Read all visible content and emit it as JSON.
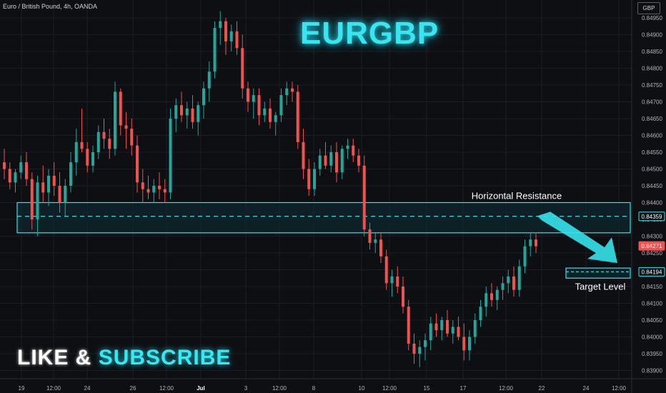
{
  "header": {
    "symbol_line": "Euro / British Pound, 4h, OANDA",
    "title": "EURGBP"
  },
  "price_axis": {
    "currency": "GBP",
    "ticks": [
      "0.84950",
      "0.84900",
      "0.84850",
      "0.84800",
      "0.84750",
      "0.84700",
      "0.84650",
      "0.84600",
      "0.84550",
      "0.84500",
      "0.84450",
      "0.84400",
      "0.84350",
      "0.84300",
      "0.84250",
      "0.84200",
      "0.84150",
      "0.84100",
      "0.84050",
      "0.84000",
      "0.83950",
      "0.83900"
    ],
    "tick_values": [
      0.8495,
      0.849,
      0.8485,
      0.848,
      0.8475,
      0.847,
      0.8465,
      0.846,
      0.8455,
      0.845,
      0.8445,
      0.844,
      0.8435,
      0.843,
      0.8425,
      0.842,
      0.8415,
      0.841,
      0.8405,
      0.84,
      0.8395,
      0.839
    ]
  },
  "time_axis": {
    "labels": [
      "19",
      "12:00",
      "24",
      "26",
      "12:00",
      "Jul",
      "3",
      "12:00",
      "8",
      "10",
      "12:00",
      "15",
      "17",
      "12:00",
      "22",
      "24",
      "12:00"
    ]
  },
  "annotations": {
    "resistance_label": "Horizontal Resistance",
    "target_label": "Target Level",
    "resistance_price": "0.84359",
    "target_price": "0.84194",
    "last_price": "0.84271"
  },
  "cta": {
    "part1": "LIKE &",
    "part2": "SUBSCRIBE"
  },
  "colors": {
    "background": "#0e0f13",
    "bull": "#26a69a",
    "bear": "#ef5350",
    "accent": "#35e3ec",
    "zone_fill": "#0d2b34",
    "grid": "#1b1d23"
  },
  "chart_data": {
    "type": "candlestick",
    "title": "EURGBP",
    "series_label": "Euro / British Pound, 4h, OANDA",
    "ylim": [
      0.8389,
      0.8497
    ],
    "resistance_zone": [
      0.8431,
      0.844
    ],
    "resistance_level": 0.84359,
    "target_zone": [
      0.84175,
      0.84205
    ],
    "target_level": 0.84194,
    "last_price": 0.84271,
    "candles": [
      [
        0.8452,
        0.8456,
        0.8447,
        0.845
      ],
      [
        0.845,
        0.8452,
        0.8444,
        0.8446
      ],
      [
        0.8446,
        0.845,
        0.8443,
        0.8449
      ],
      [
        0.8449,
        0.8454,
        0.8447,
        0.8452
      ],
      [
        0.8452,
        0.8455,
        0.8445,
        0.8447
      ],
      [
        0.8447,
        0.8449,
        0.8432,
        0.8435
      ],
      [
        0.8435,
        0.8448,
        0.843,
        0.8446
      ],
      [
        0.8446,
        0.8451,
        0.844,
        0.8443
      ],
      [
        0.8443,
        0.845,
        0.8439,
        0.8448
      ],
      [
        0.8448,
        0.8452,
        0.8442,
        0.8445
      ],
      [
        0.8445,
        0.8449,
        0.8437,
        0.844
      ],
      [
        0.844,
        0.8447,
        0.8436,
        0.8445
      ],
      [
        0.8445,
        0.8455,
        0.8443,
        0.8452
      ],
      [
        0.8452,
        0.8462,
        0.8448,
        0.8458
      ],
      [
        0.8458,
        0.8468,
        0.8455,
        0.8456
      ],
      [
        0.8456,
        0.8458,
        0.8449,
        0.8451
      ],
      [
        0.8451,
        0.8457,
        0.8449,
        0.8455
      ],
      [
        0.8455,
        0.8463,
        0.8453,
        0.8461
      ],
      [
        0.8461,
        0.8465,
        0.8456,
        0.8459
      ],
      [
        0.8459,
        0.8462,
        0.8453,
        0.8456
      ],
      [
        0.8456,
        0.8476,
        0.8454,
        0.8473
      ],
      [
        0.8473,
        0.8474,
        0.846,
        0.8463
      ],
      [
        0.8463,
        0.8467,
        0.8456,
        0.8462
      ],
      [
        0.8462,
        0.8465,
        0.8454,
        0.8457
      ],
      [
        0.8457,
        0.846,
        0.8443,
        0.8446
      ],
      [
        0.8446,
        0.845,
        0.844,
        0.8444
      ],
      [
        0.8444,
        0.8448,
        0.8441,
        0.8443
      ],
      [
        0.8443,
        0.8447,
        0.844,
        0.8445
      ],
      [
        0.8445,
        0.8449,
        0.8441,
        0.8444
      ],
      [
        0.8444,
        0.8447,
        0.844,
        0.8443
      ],
      [
        0.8443,
        0.8468,
        0.8441,
        0.8465
      ],
      [
        0.8465,
        0.8471,
        0.8461,
        0.8469
      ],
      [
        0.8469,
        0.8473,
        0.8464,
        0.8466
      ],
      [
        0.8466,
        0.847,
        0.8462,
        0.8468
      ],
      [
        0.8468,
        0.8472,
        0.8462,
        0.8464
      ],
      [
        0.8464,
        0.847,
        0.846,
        0.8469
      ],
      [
        0.8469,
        0.8476,
        0.8465,
        0.8474
      ],
      [
        0.8474,
        0.8482,
        0.847,
        0.8479
      ],
      [
        0.8479,
        0.8494,
        0.8477,
        0.8492
      ],
      [
        0.8492,
        0.8497,
        0.8487,
        0.8494
      ],
      [
        0.8494,
        0.8495,
        0.8484,
        0.8488
      ],
      [
        0.8488,
        0.8493,
        0.8485,
        0.8491
      ],
      [
        0.8491,
        0.8494,
        0.8484,
        0.8486
      ],
      [
        0.8486,
        0.849,
        0.8471,
        0.8474
      ],
      [
        0.8474,
        0.8476,
        0.8467,
        0.847
      ],
      [
        0.847,
        0.8474,
        0.8465,
        0.8472
      ],
      [
        0.8472,
        0.8474,
        0.8463,
        0.8466
      ],
      [
        0.8466,
        0.847,
        0.8464,
        0.8468
      ],
      [
        0.8468,
        0.8471,
        0.8462,
        0.8464
      ],
      [
        0.8464,
        0.8467,
        0.846,
        0.8466
      ],
      [
        0.8466,
        0.8474,
        0.8464,
        0.8472
      ],
      [
        0.8472,
        0.8476,
        0.8469,
        0.8474
      ],
      [
        0.8474,
        0.8476,
        0.847,
        0.8473
      ],
      [
        0.8473,
        0.8475,
        0.8456,
        0.8458
      ],
      [
        0.8458,
        0.8462,
        0.8447,
        0.845
      ],
      [
        0.845,
        0.8453,
        0.8442,
        0.8444
      ],
      [
        0.8444,
        0.8452,
        0.8442,
        0.845
      ],
      [
        0.845,
        0.8456,
        0.8448,
        0.8454
      ],
      [
        0.8454,
        0.8458,
        0.845,
        0.8451
      ],
      [
        0.8451,
        0.8457,
        0.8449,
        0.8455
      ],
      [
        0.8455,
        0.8458,
        0.8446,
        0.8449
      ],
      [
        0.8449,
        0.8457,
        0.8447,
        0.8456
      ],
      [
        0.8456,
        0.8459,
        0.8453,
        0.8457
      ],
      [
        0.8457,
        0.8459,
        0.8452,
        0.8454
      ],
      [
        0.8454,
        0.8456,
        0.8449,
        0.8451
      ],
      [
        0.8451,
        0.8454,
        0.843,
        0.8432
      ],
      [
        0.8432,
        0.8434,
        0.8426,
        0.8428
      ],
      [
        0.8428,
        0.8431,
        0.8425,
        0.8429
      ],
      [
        0.8429,
        0.8431,
        0.8422,
        0.8424
      ],
      [
        0.8424,
        0.8426,
        0.8414,
        0.8416
      ],
      [
        0.8416,
        0.842,
        0.8412,
        0.8418
      ],
      [
        0.8418,
        0.8421,
        0.8413,
        0.8415
      ],
      [
        0.8415,
        0.8418,
        0.8407,
        0.8409
      ],
      [
        0.8409,
        0.8411,
        0.8396,
        0.8398
      ],
      [
        0.8398,
        0.8401,
        0.8392,
        0.8395
      ],
      [
        0.8395,
        0.8399,
        0.8391,
        0.8397
      ],
      [
        0.8397,
        0.8401,
        0.8393,
        0.8399
      ],
      [
        0.8399,
        0.8406,
        0.8396,
        0.8404
      ],
      [
        0.8404,
        0.8407,
        0.84,
        0.8402
      ],
      [
        0.8402,
        0.8406,
        0.8399,
        0.8405
      ],
      [
        0.8405,
        0.8408,
        0.84,
        0.8401
      ],
      [
        0.8401,
        0.8405,
        0.8398,
        0.8403
      ],
      [
        0.8403,
        0.8406,
        0.8399,
        0.84
      ],
      [
        0.84,
        0.8404,
        0.8393,
        0.8396
      ],
      [
        0.8396,
        0.8402,
        0.8393,
        0.84
      ],
      [
        0.84,
        0.8407,
        0.8398,
        0.8405
      ],
      [
        0.8405,
        0.8411,
        0.8403,
        0.8409
      ],
      [
        0.8409,
        0.8415,
        0.8406,
        0.8413
      ],
      [
        0.8413,
        0.8416,
        0.8409,
        0.8411
      ],
      [
        0.8411,
        0.8415,
        0.8408,
        0.8414
      ],
      [
        0.8414,
        0.8418,
        0.8411,
        0.8416
      ],
      [
        0.8416,
        0.842,
        0.8413,
        0.8418
      ],
      [
        0.8418,
        0.8421,
        0.8412,
        0.8414
      ],
      [
        0.8414,
        0.8423,
        0.8412,
        0.8421
      ],
      [
        0.8421,
        0.8429,
        0.8419,
        0.8427
      ],
      [
        0.8427,
        0.8431,
        0.8424,
        0.8429
      ],
      [
        0.8429,
        0.8431,
        0.8425,
        0.8427
      ]
    ]
  }
}
